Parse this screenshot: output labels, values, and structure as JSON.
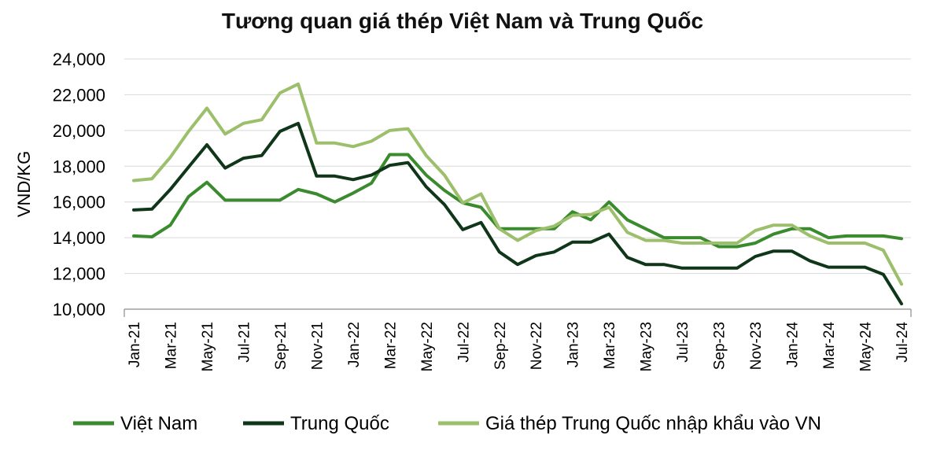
{
  "chart_data": {
    "type": "line",
    "title": "Tương quan giá thép Việt Nam và Trung Quốc",
    "ylabel": "VND/KG",
    "xlabel": "",
    "ylim": [
      10000,
      24000
    ],
    "yticks": [
      "10,000",
      "12,000",
      "14,000",
      "16,000",
      "18,000",
      "20,000",
      "22,000",
      "24,000"
    ],
    "grid": true,
    "legend_position": "bottom",
    "x": [
      "Jan-21",
      "Feb-21",
      "Mar-21",
      "Apr-21",
      "May-21",
      "Jun-21",
      "Jul-21",
      "Aug-21",
      "Sep-21",
      "Oct-21",
      "Nov-21",
      "Dec-21",
      "Jan-22",
      "Feb-22",
      "Mar-22",
      "Apr-22",
      "May-22",
      "Jun-22",
      "Jul-22",
      "Aug-22",
      "Sep-22",
      "Oct-22",
      "Nov-22",
      "Dec-22",
      "Jan-23",
      "Feb-23",
      "Mar-23",
      "Apr-23",
      "May-23",
      "Jun-23",
      "Jul-23",
      "Aug-23",
      "Sep-23",
      "Oct-23",
      "Nov-23",
      "Dec-23",
      "Jan-24",
      "Feb-24",
      "Mar-24",
      "Apr-24",
      "May-24",
      "Jun-24",
      "Jul-24"
    ],
    "xtick_labels": [
      "Jan-21",
      "Mar-21",
      "May-21",
      "Jul-21",
      "Sep-21",
      "Nov-21",
      "Jan-22",
      "Mar-22",
      "May-22",
      "Jul-22",
      "Sep-22",
      "Nov-22",
      "Jan-23",
      "Mar-23",
      "May-23",
      "Jul-23",
      "Sep-23",
      "Nov-23",
      "Jan-24",
      "Mar-24",
      "May-24",
      "Jul-24"
    ],
    "series": [
      {
        "name": "Việt Nam",
        "color": "#3a8a2e",
        "values": [
          14100,
          14050,
          14700,
          16300,
          17100,
          16100,
          16100,
          16100,
          16100,
          16700,
          16450,
          16000,
          16500,
          17050,
          18650,
          18650,
          17500,
          16650,
          15950,
          15700,
          14500,
          14500,
          14500,
          14500,
          15450,
          15000,
          16000,
          15000,
          14500,
          14000,
          14000,
          14000,
          13500,
          13500,
          13700,
          14200,
          14500,
          14500,
          14000,
          14100,
          14100,
          14100,
          13950
        ]
      },
      {
        "name": "Trung Quốc",
        "color": "#10361a",
        "values": [
          15550,
          15600,
          16700,
          17950,
          19200,
          17900,
          18450,
          18600,
          19950,
          20400,
          17450,
          17450,
          17250,
          17500,
          18050,
          18200,
          16850,
          15850,
          14450,
          14850,
          13200,
          12500,
          13000,
          13200,
          13750,
          13750,
          14200,
          12900,
          12500,
          12500,
          12300,
          12300,
          12300,
          12300,
          12950,
          13250,
          13250,
          12700,
          12350,
          12350,
          12350,
          11950,
          10300
        ]
      },
      {
        "name": "Giá thép Trung Quốc nhập khẩu vào VN",
        "color": "#9bbf6a",
        "values": [
          17200,
          17300,
          18500,
          19950,
          21250,
          19800,
          20400,
          20600,
          22100,
          22600,
          19300,
          19300,
          19100,
          19400,
          20000,
          20100,
          18600,
          17500,
          15950,
          16450,
          14500,
          13850,
          14400,
          14650,
          15250,
          15300,
          15700,
          14300,
          13850,
          13850,
          13700,
          13700,
          13700,
          13700,
          14400,
          14700,
          14700,
          14100,
          13700,
          13700,
          13700,
          13300,
          11400
        ]
      }
    ]
  }
}
